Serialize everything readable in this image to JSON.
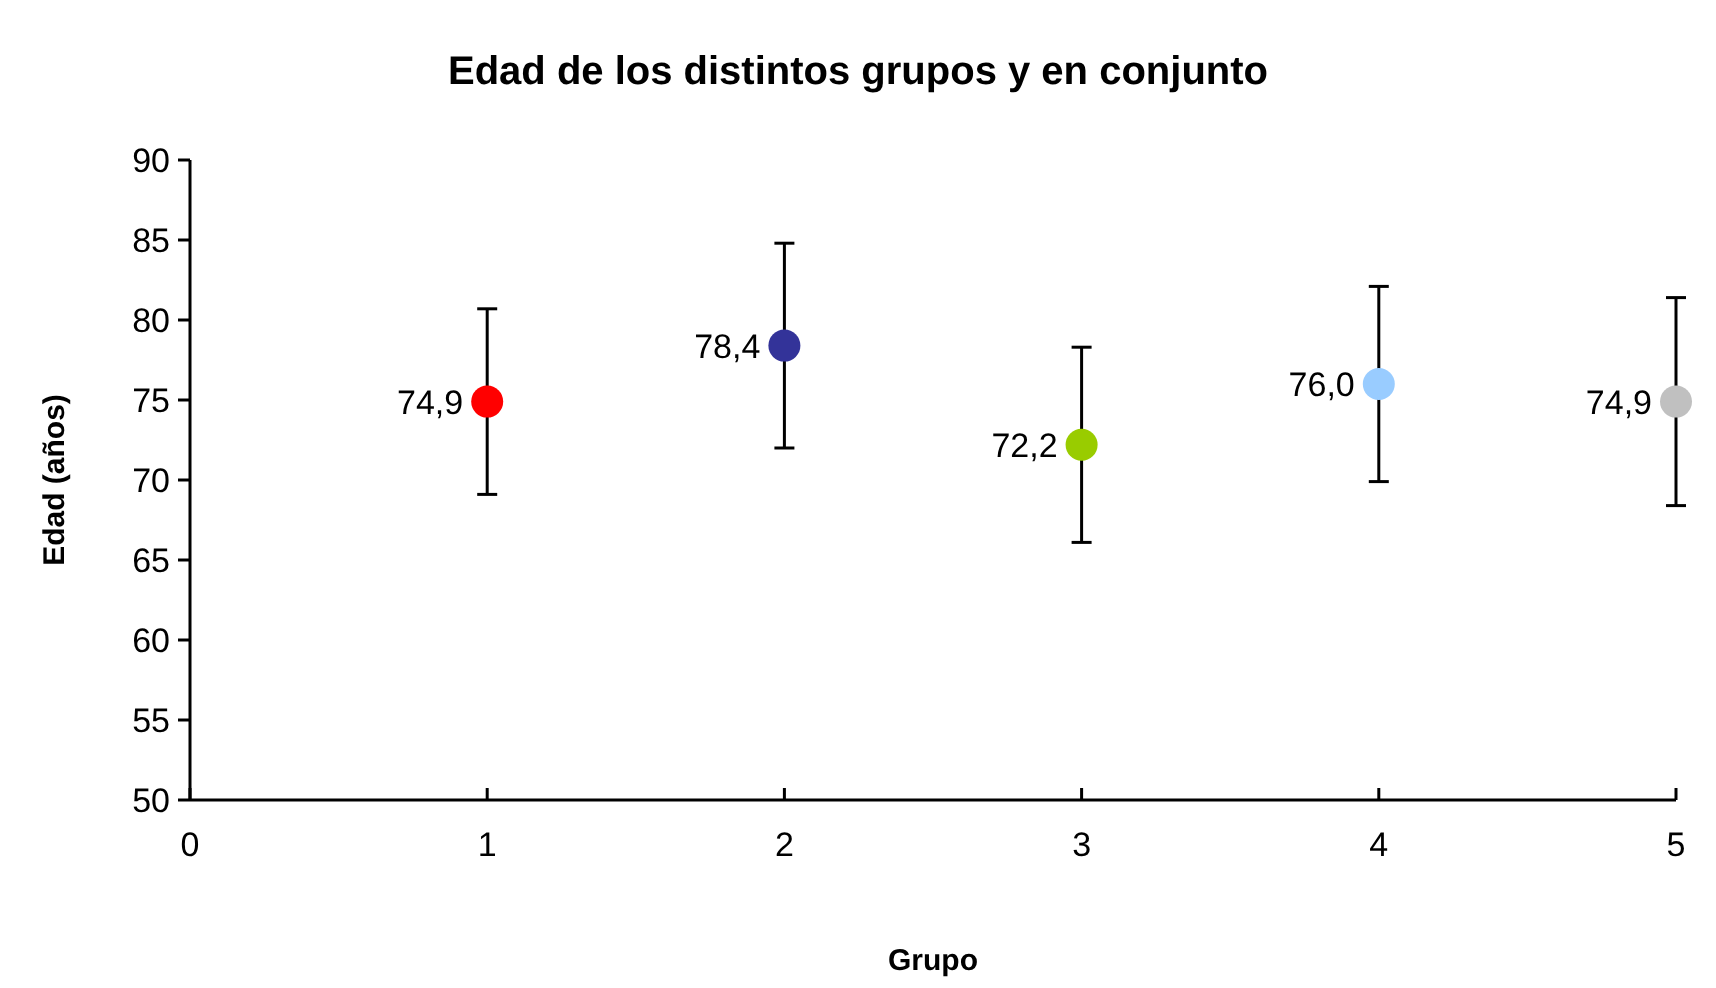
{
  "chart_data": {
    "type": "scatter",
    "title": "Edad de los distintos grupos y en conjunto",
    "xlabel": "Grupo",
    "ylabel": "Edad (años)",
    "x": [
      1,
      2,
      3,
      4,
      5
    ],
    "values": [
      74.9,
      78.4,
      72.2,
      76.0,
      74.9
    ],
    "colors": [
      "#ff0000",
      "#333399",
      "#99cc00",
      "#99ccff",
      "#c0c0c0"
    ],
    "errors": [
      5.8,
      6.4,
      6.1,
      6.1,
      6.5
    ],
    "value_labels": [
      "74,9",
      "78,4",
      "72,2",
      "76,0",
      "74,9"
    ],
    "xlim": [
      0,
      5
    ],
    "xticks": [
      0,
      1,
      2,
      3,
      4,
      5
    ],
    "ylim": [
      50,
      90
    ],
    "yticks": [
      50,
      55,
      60,
      65,
      70,
      75,
      80,
      85,
      90
    ],
    "grid": false,
    "marker": "circle"
  }
}
